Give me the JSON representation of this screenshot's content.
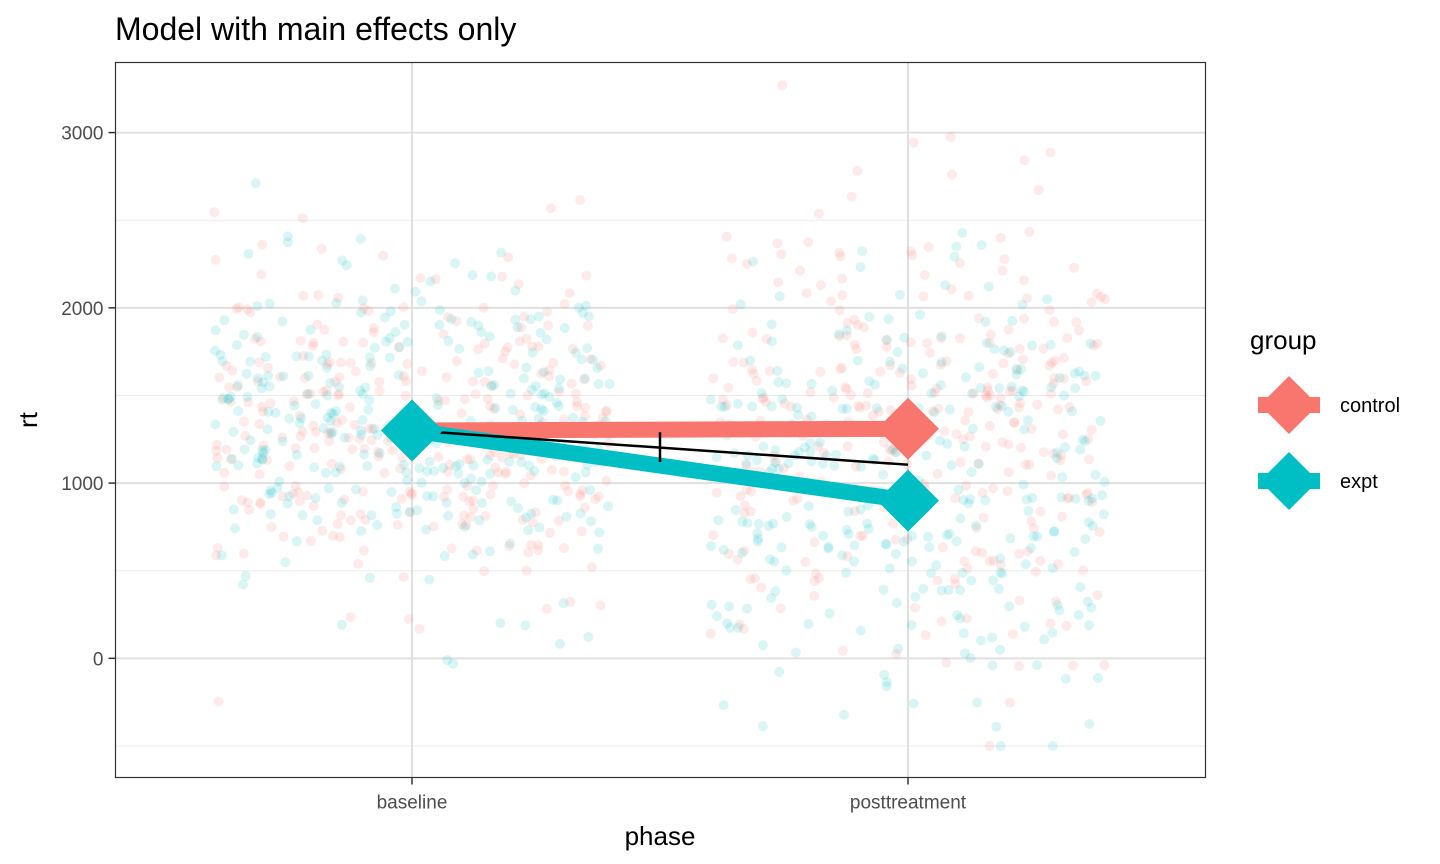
{
  "chart_data": {
    "type": "scatter",
    "title": "Model with main effects only",
    "xlabel": "phase",
    "ylabel": "rt",
    "categories": [
      "baseline",
      "posttreatment"
    ],
    "ylim": [
      -680,
      3400
    ],
    "yticks": [
      0,
      1000,
      2000,
      3000
    ],
    "grid": true,
    "legend": {
      "title": "group",
      "position": "right",
      "entries": [
        {
          "name": "control",
          "color": "#F8766D"
        },
        {
          "name": "expt",
          "color": "#00BFC4"
        }
      ]
    },
    "series": [
      {
        "name": "control",
        "color": "#F8766D",
        "values": [
          1300,
          1310
        ]
      },
      {
        "name": "expt",
        "color": "#00BFC4",
        "values": [
          1300,
          900
        ]
      }
    ],
    "main_effect_line": {
      "color": "#000000",
      "values": [
        1300,
        1105
      ],
      "midpoint_error": [
        1120,
        1290
      ]
    },
    "raw_point_style": {
      "alpha": 0.15,
      "jitter_range": [
        -500,
        3270
      ]
    }
  }
}
